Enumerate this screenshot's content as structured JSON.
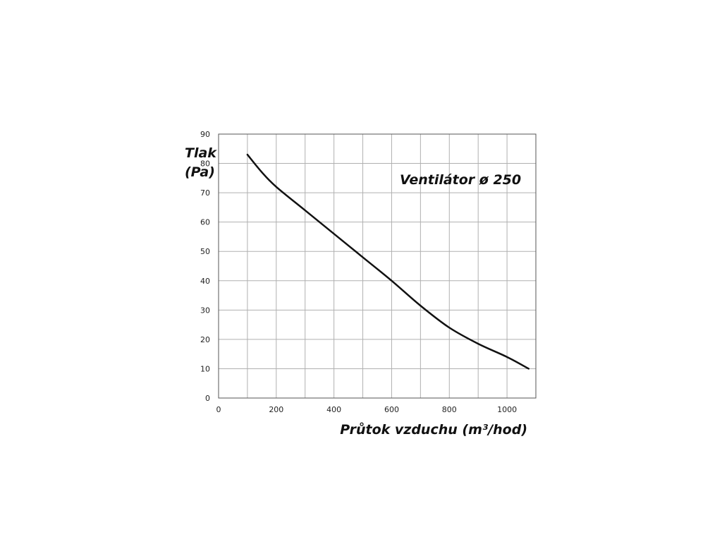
{
  "chart_data": {
    "type": "line",
    "title": "Ventilátor ø 250",
    "ylabel_line1": "Tlak",
    "ylabel_line2": "(Pa)",
    "xlabel": "Průtok vzduchu (m³/hod)",
    "xlim": [
      0,
      1100
    ],
    "ylim": [
      0,
      90
    ],
    "x_ticks": [
      0,
      200,
      400,
      600,
      800,
      1000
    ],
    "y_ticks": [
      0,
      10,
      20,
      30,
      40,
      50,
      60,
      70,
      80,
      90
    ],
    "grid": true,
    "series": [
      {
        "x": [
          100,
          150,
          200,
          300,
          400,
          500,
          600,
          700,
          800,
          900,
          1000,
          1075
        ],
        "y": [
          83,
          77,
          72,
          64,
          56,
          48,
          40,
          31.5,
          24,
          18.5,
          14,
          10
        ]
      }
    ],
    "colors": {
      "line": "#111111",
      "grid": "#b0b0b0",
      "axis": "#555555"
    }
  }
}
